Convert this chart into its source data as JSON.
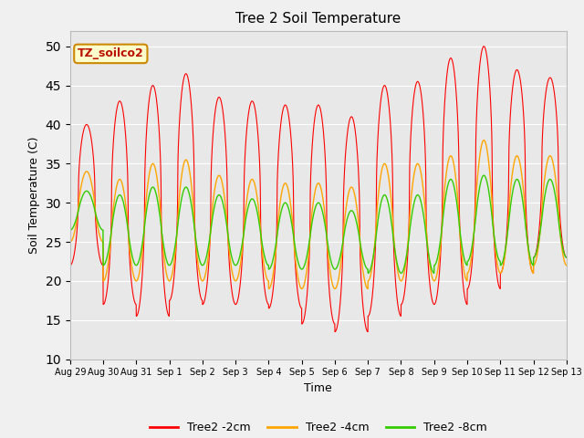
{
  "title": "Tree 2 Soil Temperature",
  "xlabel": "Time",
  "ylabel": "Soil Temperature (C)",
  "ylim": [
    10,
    52
  ],
  "yticks": [
    10,
    15,
    20,
    25,
    30,
    35,
    40,
    45,
    50
  ],
  "annotation": "TZ_soilco2",
  "plot_bg_color": "#e8e8e8",
  "fig_bg_color": "#f0f0f0",
  "colors": {
    "2cm": "#ff0000",
    "4cm": "#ffa500",
    "8cm": "#33cc00"
  },
  "legend_labels": [
    "Tree2 -2cm",
    "Tree2 -4cm",
    "Tree2 -8cm"
  ],
  "x_tick_labels": [
    "Aug 29",
    "Aug 30",
    "Aug 31",
    "Sep 1",
    "Sep 2",
    "Sep 3",
    "Sep 4",
    "Sep 5",
    "Sep 6",
    "Sep 7",
    "Sep 8",
    "Sep 9",
    "Sep 10",
    "Sep 11",
    "Sep 12",
    "Sep 13"
  ],
  "num_days": 15,
  "points_per_day": 240,
  "day_peaks_2cm": [
    40,
    43,
    45,
    46.5,
    43.5,
    43,
    42.5,
    42.5,
    41,
    45,
    45.5,
    48.5,
    50,
    47,
    46
  ],
  "day_mins_2cm": [
    22,
    17,
    15.5,
    17.5,
    17,
    17,
    16.5,
    14.5,
    13.5,
    15.5,
    17,
    17,
    19,
    21,
    23
  ],
  "day_peaks_4cm": [
    34,
    33,
    35,
    35.5,
    33.5,
    33,
    32.5,
    32.5,
    32,
    35,
    35,
    36,
    38,
    36,
    36
  ],
  "day_mins_4cm": [
    25,
    20,
    20,
    20,
    20,
    20,
    19,
    19,
    19,
    20,
    20,
    20,
    21,
    21,
    22
  ],
  "day_peaks_8cm": [
    31.5,
    31,
    32,
    32,
    31,
    30.5,
    30,
    30,
    29,
    31,
    31,
    33,
    33.5,
    33,
    33
  ],
  "day_mins_8cm": [
    26.5,
    22,
    22,
    22,
    22,
    22,
    21.5,
    21.5,
    21.5,
    21,
    21,
    22,
    22.5,
    22,
    23
  ]
}
